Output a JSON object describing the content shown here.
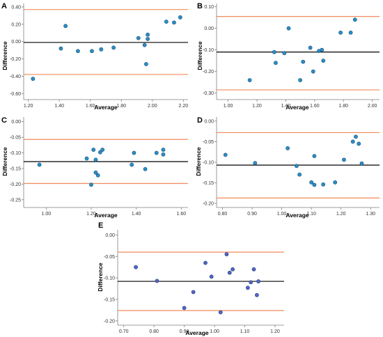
{
  "colors": {
    "mean": "#000000",
    "limit": "#f08a5a",
    "point": "#2a8fc4",
    "point_stroke": "#1a4e7a",
    "axis": "#7f7f7f"
  },
  "chart_data": [
    {
      "type": "scatter",
      "panel_label": "A",
      "xlabel": "Average",
      "ylabel": "Difference",
      "xlim": [
        1.17,
        2.23
      ],
      "ylim": [
        -0.67,
        0.44
      ],
      "xticks": [
        1.2,
        1.4,
        1.6,
        1.8,
        2.0,
        2.2
      ],
      "xtick_labels": [
        "1.20",
        "1.40",
        "1.60",
        "1.80",
        "2.00",
        "2.20"
      ],
      "yticks": [
        -0.6,
        -0.4,
        -0.2,
        0.0,
        0.2,
        0.4
      ],
      "ytick_labels": [
        "-0.60",
        "-0.40",
        "-0.20",
        "0.00",
        "0.20",
        "0.40"
      ],
      "mean": -0.01,
      "upper": 0.37,
      "lower": -0.38,
      "point_color": "#2a8fc4",
      "points": [
        [
          1.23,
          -0.43
        ],
        [
          1.41,
          -0.08
        ],
        [
          1.44,
          0.18
        ],
        [
          1.52,
          -0.11
        ],
        [
          1.61,
          -0.11
        ],
        [
          1.67,
          -0.09
        ],
        [
          1.75,
          -0.07
        ],
        [
          1.91,
          0.04
        ],
        [
          1.95,
          -0.04
        ],
        [
          1.96,
          -0.26
        ],
        [
          1.97,
          0.03
        ],
        [
          1.97,
          0.08
        ],
        [
          2.09,
          0.23
        ],
        [
          2.14,
          0.22
        ],
        [
          2.18,
          0.28
        ]
      ]
    },
    {
      "type": "scatter",
      "panel_label": "B",
      "xlabel": "Average",
      "ylabel": "Difference",
      "xlim": [
        0.92,
        2.05
      ],
      "ylim": [
        -0.33,
        0.115
      ],
      "xticks": [
        1.0,
        1.2,
        1.4,
        1.6,
        1.8,
        2.0
      ],
      "xtick_labels": [
        "1.00",
        "1.20",
        "1.40",
        "1.60",
        "1.80",
        "2.00"
      ],
      "yticks": [
        -0.3,
        -0.2,
        -0.1,
        0.0,
        0.1
      ],
      "ytick_labels": [
        "-0.30",
        "-0.20",
        "-0.10",
        "0.00",
        "0.10"
      ],
      "mean": -0.11,
      "upper": 0.055,
      "lower": -0.285,
      "point_color": "#2a8fc4",
      "points": [
        [
          1.15,
          -0.24
        ],
        [
          1.32,
          -0.11
        ],
        [
          1.33,
          -0.16
        ],
        [
          1.39,
          -0.115
        ],
        [
          1.42,
          0.0
        ],
        [
          1.5,
          -0.24
        ],
        [
          1.52,
          -0.155
        ],
        [
          1.57,
          -0.09
        ],
        [
          1.59,
          -0.2
        ],
        [
          1.63,
          -0.105
        ],
        [
          1.65,
          -0.1
        ],
        [
          1.66,
          -0.15
        ],
        [
          1.78,
          -0.02
        ],
        [
          1.85,
          -0.02
        ],
        [
          1.88,
          0.04
        ]
      ]
    },
    {
      "type": "scatter",
      "panel_label": "C",
      "xlabel": "Average",
      "ylabel": "Difference",
      "xlim": [
        0.9,
        1.63
      ],
      "ylim": [
        -0.275,
        0.015
      ],
      "xticks": [
        1.0,
        1.2,
        1.4,
        1.6
      ],
      "xtick_labels": [
        "1.00",
        "1.20",
        "1.40",
        "1.60"
      ],
      "yticks": [
        -0.25,
        -0.2,
        -0.15,
        -0.1,
        -0.05,
        0.0
      ],
      "ytick_labels": [
        "-0.25",
        "-0.20",
        "-0.15",
        "-0.10",
        "-0.05",
        "0.00"
      ],
      "mean": -0.128,
      "upper": -0.057,
      "lower": -0.198,
      "point_color": "#2a8fc4",
      "points": [
        [
          0.97,
          -0.138
        ],
        [
          1.18,
          -0.118
        ],
        [
          1.2,
          -0.202
        ],
        [
          1.21,
          -0.09
        ],
        [
          1.22,
          -0.163
        ],
        [
          1.22,
          -0.122
        ],
        [
          1.23,
          -0.172
        ],
        [
          1.24,
          -0.098
        ],
        [
          1.25,
          -0.09
        ],
        [
          1.38,
          -0.138
        ],
        [
          1.39,
          -0.1
        ],
        [
          1.44,
          -0.152
        ],
        [
          1.49,
          -0.1
        ],
        [
          1.52,
          -0.105
        ],
        [
          1.52,
          -0.09
        ]
      ]
    },
    {
      "type": "scatter",
      "panel_label": "D",
      "xlabel": "Average",
      "ylabel": "Difference",
      "xlim": [
        0.78,
        1.33
      ],
      "ylim": [
        -0.21,
        0.01
      ],
      "xticks": [
        0.8,
        0.9,
        1.0,
        1.1,
        1.2,
        1.3
      ],
      "xtick_labels": [
        "0.80",
        "0.90",
        "1.00",
        "1.10",
        "1.20",
        "1.30"
      ],
      "yticks": [
        -0.2,
        -0.15,
        -0.1,
        -0.05,
        0.0
      ],
      "ytick_labels": [
        "-0.20",
        "-0.15",
        "-0.10",
        "-0.05",
        "0.00"
      ],
      "mean": -0.107,
      "upper": -0.028,
      "lower": -0.187,
      "point_color": "#2a8fc4",
      "points": [
        [
          0.81,
          -0.082
        ],
        [
          0.91,
          -0.102
        ],
        [
          1.02,
          -0.066
        ],
        [
          1.05,
          -0.109
        ],
        [
          1.06,
          -0.13
        ],
        [
          1.1,
          -0.149
        ],
        [
          1.11,
          -0.085
        ],
        [
          1.11,
          -0.155
        ],
        [
          1.14,
          -0.154
        ],
        [
          1.18,
          -0.149
        ],
        [
          1.21,
          -0.094
        ],
        [
          1.24,
          -0.05
        ],
        [
          1.25,
          -0.038
        ],
        [
          1.26,
          -0.055
        ],
        [
          1.27,
          -0.103
        ]
      ]
    },
    {
      "type": "scatter",
      "panel_label": "E",
      "xlabel": "Average",
      "ylabel": "Difference",
      "xlim": [
        0.68,
        1.23
      ],
      "ylim": [
        -0.21,
        0.012
      ],
      "xticks": [
        0.7,
        0.8,
        0.9,
        1.0,
        1.1,
        1.2
      ],
      "xtick_labels": [
        "0.70",
        "0.80",
        "0.90",
        "1.00",
        "1.10",
        "1.20"
      ],
      "yticks": [
        -0.2,
        -0.15,
        -0.1,
        -0.05,
        0.0
      ],
      "ytick_labels": [
        "-0.20",
        "-0.15",
        "-0.10",
        "-0.05",
        "0.00"
      ],
      "mean": -0.108,
      "upper": -0.04,
      "lower": -0.176,
      "point_color": "#5b5fc7",
      "points": [
        [
          0.74,
          -0.075
        ],
        [
          0.81,
          -0.107
        ],
        [
          0.9,
          -0.17
        ],
        [
          0.93,
          -0.133
        ],
        [
          0.97,
          -0.065
        ],
        [
          0.99,
          -0.097
        ],
        [
          1.02,
          -0.18
        ],
        [
          1.04,
          -0.045
        ],
        [
          1.05,
          -0.088
        ],
        [
          1.06,
          -0.08
        ],
        [
          1.11,
          -0.123
        ],
        [
          1.12,
          -0.11
        ],
        [
          1.13,
          -0.08
        ],
        [
          1.14,
          -0.14
        ],
        [
          1.145,
          -0.108
        ]
      ]
    }
  ]
}
